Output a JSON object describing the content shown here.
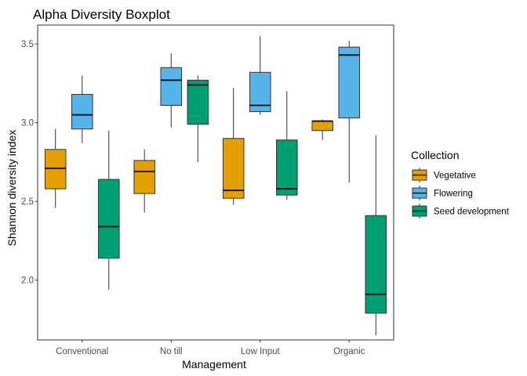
{
  "chart_data": {
    "type": "boxplot",
    "title": "Alpha Diversity Boxplot",
    "xlabel": "Management",
    "ylabel": "Shannon diversity index",
    "ylim": [
      1.62,
      3.62
    ],
    "yticks": [
      "2.0",
      "2.5",
      "3.0",
      "3.5"
    ],
    "grid": false,
    "legend": {
      "title": "Collection",
      "position": "right"
    },
    "categories": [
      "Conventional",
      "No till",
      "Low Input",
      "Organic"
    ],
    "series": [
      {
        "name": "Vegetative",
        "color": "#E69F00",
        "boxes": [
          {
            "min": 2.46,
            "q1": 2.58,
            "median": 2.71,
            "q3": 2.83,
            "max": 2.96
          },
          {
            "min": 2.43,
            "q1": 2.55,
            "median": 2.69,
            "q3": 2.76,
            "max": 2.83
          },
          {
            "min": 2.48,
            "q1": 2.52,
            "median": 2.57,
            "q3": 2.9,
            "max": 3.22
          },
          {
            "min": 2.89,
            "q1": 2.95,
            "median": 3.01,
            "q3": 3.01,
            "max": 3.02
          }
        ]
      },
      {
        "name": "Flowering",
        "color": "#56B4E9",
        "boxes": [
          {
            "min": 2.87,
            "q1": 2.96,
            "median": 3.05,
            "q3": 3.18,
            "max": 3.3
          },
          {
            "min": 2.97,
            "q1": 3.11,
            "median": 3.27,
            "q3": 3.35,
            "max": 3.44
          },
          {
            "min": 3.05,
            "q1": 3.07,
            "median": 3.11,
            "q3": 3.32,
            "max": 3.55
          },
          {
            "min": 2.62,
            "q1": 3.03,
            "median": 3.43,
            "q3": 3.48,
            "max": 3.52
          }
        ]
      },
      {
        "name": "Seed development",
        "color": "#009E73",
        "boxes": [
          {
            "min": 1.94,
            "q1": 2.14,
            "median": 2.34,
            "q3": 2.64,
            "max": 2.95
          },
          {
            "min": 2.75,
            "q1": 2.99,
            "median": 3.24,
            "q3": 3.27,
            "max": 3.3
          },
          {
            "min": 2.51,
            "q1": 2.54,
            "median": 2.58,
            "q3": 2.89,
            "max": 3.2
          },
          {
            "min": 1.65,
            "q1": 1.79,
            "median": 1.91,
            "q3": 2.41,
            "max": 2.92
          }
        ]
      }
    ]
  }
}
